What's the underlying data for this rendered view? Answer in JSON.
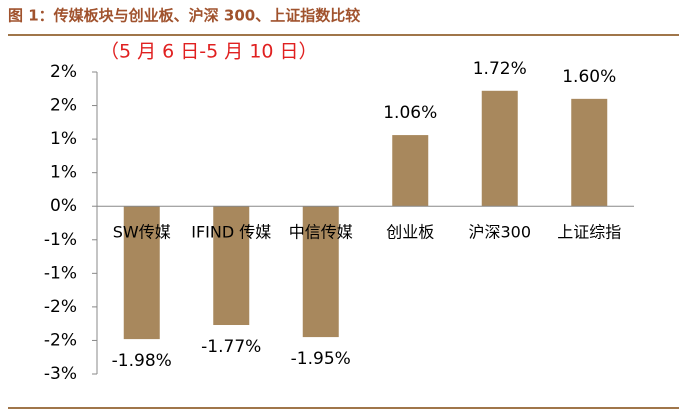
{
  "chart_data": {
    "type": "bar",
    "title": "图 1：传媒板块与创业板、沪深 300、上证指数比较",
    "subtitle": "（5 月 6 日-5 月 10 日）",
    "categories": [
      "SW传媒",
      "IFIND 传媒",
      "中信传媒",
      "创业板",
      "沪深300",
      "上证综指"
    ],
    "values": [
      -1.98,
      -1.77,
      -1.95,
      1.06,
      1.72,
      1.6
    ],
    "value_labels": [
      "-1.98%",
      "-1.77%",
      "-1.95%",
      "1.06%",
      "1.72%",
      "1.60%"
    ],
    "color": "#a8885d",
    "ylim": [
      -2.5,
      2.0
    ],
    "yticks": [
      {
        "value": 2.0,
        "label": "2%"
      },
      {
        "value": 1.5,
        "label": "2%"
      },
      {
        "value": 1.0,
        "label": "1%"
      },
      {
        "value": 0.5,
        "label": "1%"
      },
      {
        "value": 0,
        "label": "0%"
      },
      {
        "value": -0.5,
        "label": "-1%"
      },
      {
        "value": -1.0,
        "label": "-1%"
      },
      {
        "value": -1.5,
        "label": "-2%"
      },
      {
        "value": -2.0,
        "label": "-2%"
      },
      {
        "value": -2.5,
        "label": "-3%"
      }
    ]
  }
}
